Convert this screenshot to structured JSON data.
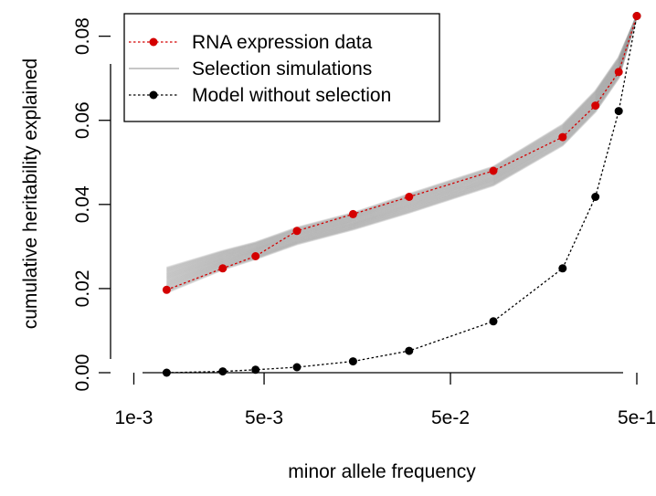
{
  "chart_data": {
    "type": "line",
    "title": "",
    "xlabel": "minor allele frequency",
    "ylabel": "cumulative heritability explained",
    "x_scale": "log",
    "xlim": [
      0.00075,
      0.5
    ],
    "ylim": [
      0.0,
      0.086
    ],
    "x_ticks": [
      {
        "value": 0.001,
        "label": "1e-3"
      },
      {
        "value": 0.005,
        "label": "5e-3"
      },
      {
        "value": 0.05,
        "label": "5e-2"
      },
      {
        "value": 0.5,
        "label": "5e-1"
      }
    ],
    "y_ticks": [
      {
        "value": 0.0,
        "label": "0.00"
      },
      {
        "value": 0.02,
        "label": "0.02"
      },
      {
        "value": 0.04,
        "label": "0.04"
      },
      {
        "value": 0.06,
        "label": "0.06"
      },
      {
        "value": 0.08,
        "label": "0.08"
      }
    ],
    "grid": false,
    "legend_position": "top-left",
    "series": [
      {
        "name": "RNA expression data",
        "color": "#d40000",
        "line_style": "dotted",
        "marker": "circle",
        "x": [
          0.0015,
          0.003,
          0.0045,
          0.0075,
          0.015,
          0.03,
          0.085,
          0.2,
          0.3,
          0.4,
          0.5
        ],
        "y": [
          0.0197,
          0.0248,
          0.0277,
          0.0337,
          0.0377,
          0.0418,
          0.048,
          0.056,
          0.0635,
          0.0715,
          0.0848
        ]
      },
      {
        "name": "Selection simulations",
        "color": "#bfbfbf",
        "line_style": "solid",
        "marker": "none",
        "display": "band of many simulated curves",
        "x": [
          0.0015,
          0.003,
          0.0045,
          0.0075,
          0.015,
          0.03,
          0.085,
          0.2,
          0.3,
          0.4,
          0.5
        ],
        "y_low": [
          0.019,
          0.0245,
          0.027,
          0.0305,
          0.034,
          0.038,
          0.0445,
          0.054,
          0.062,
          0.07,
          0.0848
        ],
        "y_high": [
          0.025,
          0.029,
          0.031,
          0.0345,
          0.038,
          0.0425,
          0.049,
          0.059,
          0.067,
          0.075,
          0.0848
        ]
      },
      {
        "name": "Model without selection",
        "color": "#000000",
        "line_style": "dotted",
        "marker": "circle",
        "x": [
          0.0015,
          0.003,
          0.0045,
          0.0075,
          0.015,
          0.03,
          0.085,
          0.2,
          0.3,
          0.4,
          0.5
        ],
        "y": [
          0.0,
          0.0003,
          0.0007,
          0.0013,
          0.0027,
          0.0052,
          0.0122,
          0.0248,
          0.0418,
          0.0622,
          0.0848
        ]
      }
    ]
  }
}
